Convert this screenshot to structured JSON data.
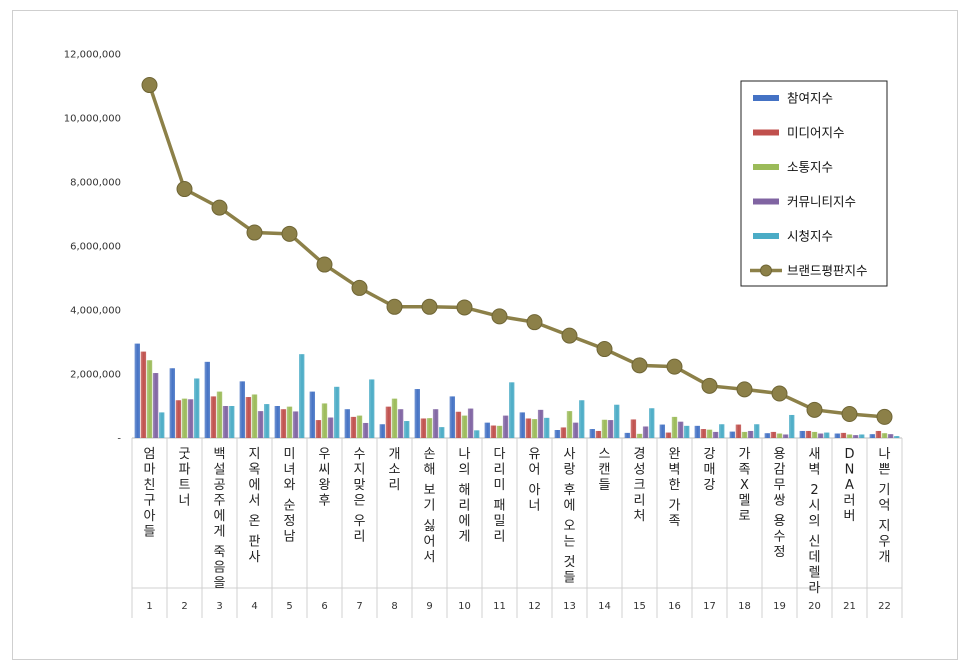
{
  "chart_data": {
    "type": "bar",
    "title": "",
    "xlabel": "",
    "ylabel": "",
    "ylim": [
      0,
      12000000
    ],
    "yticks": [
      0,
      2000000,
      4000000,
      6000000,
      8000000,
      10000000,
      12000000
    ],
    "ytick_labels": [
      "-",
      "2,000,000",
      "4,000,000",
      "6,000,000",
      "8,000,000",
      "10,000,000",
      "12,000,000"
    ],
    "grid": false,
    "legend_position": "top-right",
    "categories": [
      "엄마친구아들",
      "굿파트너",
      "백설공주에게 죽음을",
      "지옥에서 온 판사",
      "미녀와 순정남",
      "우씨왕후",
      "수지맞은 우리",
      "개소리",
      "손해 보기 싫어서",
      "나의 해리에게",
      "다리미 패밀리",
      "유어 아너",
      "사랑 후에 오는 것들",
      "스캔들",
      "경성크리처",
      "완벽한 가족",
      "강매강",
      "가족X멜로",
      "용감무쌍 용수정",
      "새벽 2시의 신데렐라",
      "DNA러버",
      "나쁜 기억 지우개"
    ],
    "ranks": [
      "1",
      "2",
      "3",
      "4",
      "5",
      "6",
      "7",
      "8",
      "9",
      "10",
      "11",
      "12",
      "13",
      "14",
      "15",
      "16",
      "17",
      "18",
      "19",
      "20",
      "21",
      "22"
    ],
    "series": [
      {
        "name": "참여지수",
        "kind": "bar",
        "color": "#4472C4",
        "values": [
          2950000,
          2180000,
          2380000,
          1770000,
          1000000,
          1450000,
          900000,
          430000,
          1530000,
          1300000,
          480000,
          800000,
          250000,
          280000,
          160000,
          420000,
          380000,
          200000,
          150000,
          220000,
          140000,
          120000
        ]
      },
      {
        "name": "미디어지수",
        "kind": "bar",
        "color": "#C0504D",
        "values": [
          2700000,
          1180000,
          1300000,
          1280000,
          900000,
          560000,
          660000,
          980000,
          610000,
          820000,
          390000,
          610000,
          330000,
          220000,
          580000,
          170000,
          280000,
          420000,
          190000,
          220000,
          160000,
          220000
        ]
      },
      {
        "name": "소통지수",
        "kind": "bar",
        "color": "#9BBB59",
        "values": [
          2430000,
          1230000,
          1450000,
          1360000,
          980000,
          1080000,
          700000,
          1230000,
          620000,
          700000,
          380000,
          590000,
          840000,
          570000,
          130000,
          660000,
          260000,
          190000,
          140000,
          190000,
          110000,
          150000
        ]
      },
      {
        "name": "커뮤니티지수",
        "kind": "bar",
        "color": "#8064A2",
        "values": [
          2030000,
          1210000,
          1000000,
          840000,
          830000,
          640000,
          470000,
          900000,
          900000,
          920000,
          700000,
          880000,
          480000,
          560000,
          360000,
          510000,
          190000,
          220000,
          110000,
          140000,
          90000,
          120000
        ]
      },
      {
        "name": "시청지수",
        "kind": "bar",
        "color": "#4BACC6",
        "values": [
          800000,
          1860000,
          1000000,
          1060000,
          2620000,
          1600000,
          1830000,
          530000,
          340000,
          240000,
          1740000,
          630000,
          1180000,
          1040000,
          930000,
          380000,
          430000,
          430000,
          720000,
          170000,
          110000,
          60000
        ]
      },
      {
        "name": "브랜드평판지수",
        "kind": "line",
        "color": "#8C8048",
        "values": [
          11030000,
          7780000,
          7200000,
          6420000,
          6380000,
          5420000,
          4690000,
          4100000,
          4100000,
          4080000,
          3800000,
          3620000,
          3200000,
          2780000,
          2270000,
          2230000,
          1630000,
          1520000,
          1390000,
          880000,
          750000,
          660000
        ]
      }
    ]
  }
}
